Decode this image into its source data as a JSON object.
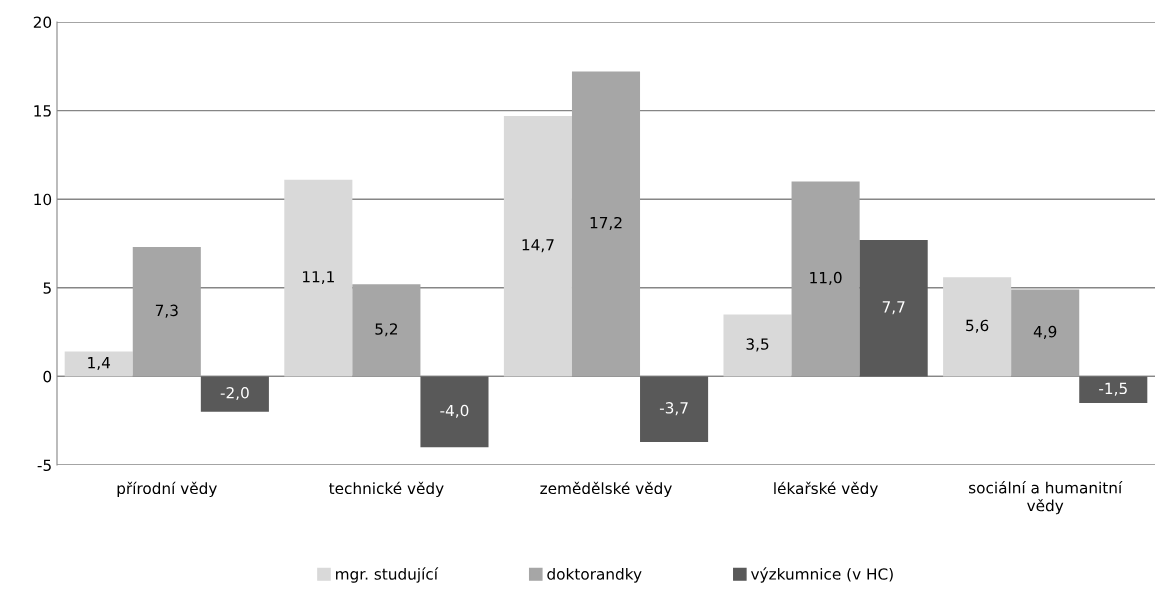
{
  "chart_data": {
    "type": "bar",
    "categories": [
      "přírodní vědy",
      "technické vědy",
      "zemědělské vědy",
      "lékařské vědy",
      "sociální a humanitní vědy"
    ],
    "series": [
      {
        "name": "mgr. studující",
        "color": "#d9d9d9",
        "values": [
          1.4,
          11.1,
          14.7,
          3.5,
          5.6
        ],
        "value_labels": [
          "1,4",
          "11,1",
          "14,7",
          "3,5",
          "5,6"
        ]
      },
      {
        "name": "doktorandky",
        "color": "#a6a6a6",
        "values": [
          7.3,
          5.2,
          17.2,
          11.0,
          4.9
        ],
        "value_labels": [
          "7,3",
          "5,2",
          "17,2",
          "11,0",
          "4,9"
        ]
      },
      {
        "name": "výzkumnice (v HC)",
        "color": "#595959",
        "values": [
          -2.0,
          -4.0,
          -3.7,
          7.7,
          -1.5
        ],
        "value_labels": [
          "-2,0",
          "-4,0",
          "-3,7",
          "7,7",
          "-1,5"
        ]
      }
    ],
    "ylim": [
      -5,
      20
    ],
    "yticks": [
      {
        "value": -5,
        "label": "-5"
      },
      0,
      5,
      10,
      15,
      20
    ],
    "grid": "y",
    "legend": "bottom"
  }
}
